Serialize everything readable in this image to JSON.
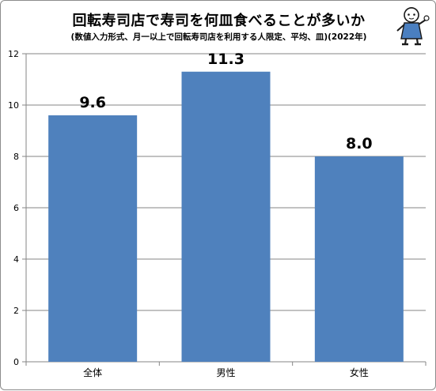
{
  "chart_data": {
    "type": "bar",
    "title": "回転寿司店で寿司を何皿食べることが多いか",
    "subtitle": "(数値入力形式、月一以上で回転寿司店を利用する人限定、平均、皿)(2022年)",
    "categories": [
      "全体",
      "男性",
      "女性"
    ],
    "values": [
      9.6,
      11.3,
      8.0
    ],
    "data_labels": [
      "9.6",
      "11.3",
      "8.0"
    ],
    "ylim": [
      0,
      12
    ],
    "yticks": [
      "0",
      "2",
      "4",
      "6",
      "8",
      "10",
      "12"
    ],
    "grid": true,
    "bar_color": "#4f81bd",
    "grid_color": "#868686"
  },
  "mascot": {
    "icon": "mascot-character-icon"
  }
}
